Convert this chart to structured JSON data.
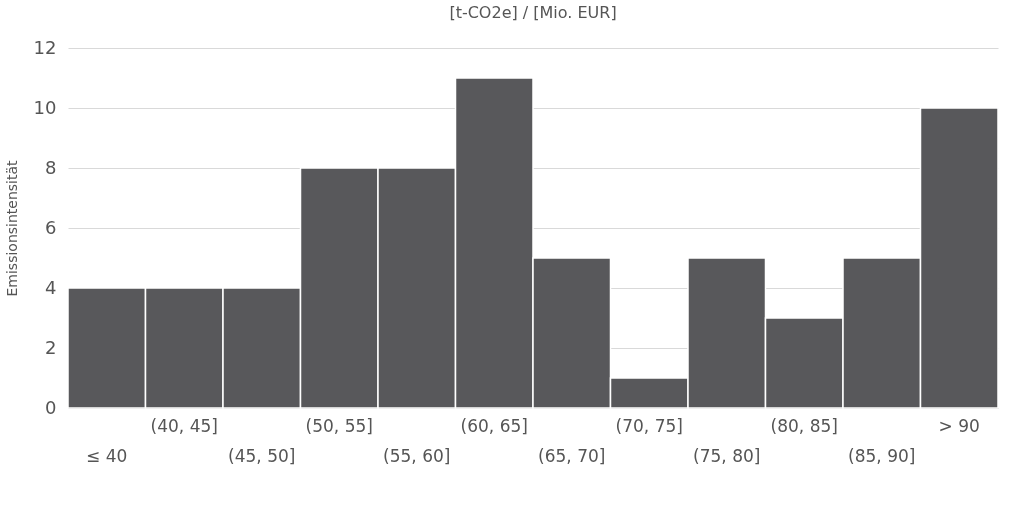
{
  "chart_data": {
    "type": "bar",
    "title": "[t-CO2e] / [Mio. EUR]",
    "ylabel": "Emissionsintensität",
    "categories": [
      "≤ 40",
      "(40, 45]",
      "(45, 50]",
      "(50, 55]",
      "(55, 60]",
      "(60, 65]",
      "(65, 70]",
      "(70, 75]",
      "(75, 80]",
      "(80, 85]",
      "(85, 90]",
      "> 90"
    ],
    "values": [
      4,
      4,
      4,
      8,
      8,
      11,
      5,
      1,
      5,
      3,
      5,
      10
    ],
    "color": "#58585b",
    "ylim": [
      0,
      12
    ],
    "yticks": [
      0,
      2,
      4,
      6,
      8,
      10,
      12
    ],
    "grid": "y"
  }
}
